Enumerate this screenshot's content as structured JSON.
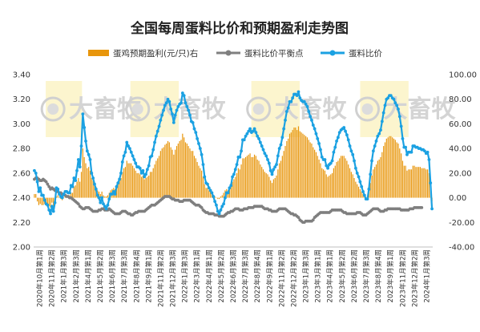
{
  "chart_data": {
    "type": "bar+line",
    "title": "全国每周蛋料比价和预期盈利走势图",
    "watermark": "大畜牧",
    "legend": [
      {
        "name": "蛋鸡预期盈利(元/只)右",
        "kind": "bar",
        "color": "#E8960C"
      },
      {
        "name": "蛋料比价平衡点",
        "kind": "line",
        "color": "#7F7F7F"
      },
      {
        "name": "蛋料比价",
        "kind": "line",
        "color": "#1BA1E2"
      }
    ],
    "y_left": {
      "min": 2.0,
      "max": 3.4,
      "step": 0.2,
      "ticks": [
        "2.00",
        "2.20",
        "2.40",
        "2.60",
        "2.80",
        "3.00",
        "3.20",
        "3.40"
      ]
    },
    "y_right": {
      "min": -40,
      "max": 100,
      "step": 20,
      "ticks": [
        "-40.00",
        "-20.00",
        "0.00",
        "20.00",
        "40.00",
        "60.00",
        "80.00",
        "100.00"
      ]
    },
    "x_labels": [
      "2020年10月第1周",
      "2020年11月第2周",
      "2021年1月第3周",
      "2021年2月第3周",
      "2021年4月第1周",
      "2021年5月第2周",
      "2021年6月第3周",
      "2021年7月第3周",
      "2021年8月第4周",
      "2021年9月第1周",
      "2021年11月第2周",
      "2021年12月第3周",
      "2022年1月第3周",
      "2022年3月第1周",
      "2022年4月第1周",
      "2022年5月第2周",
      "2022年6月第3周",
      "2022年7月第3周",
      "2022年8月第4周",
      "2022年9月第1周",
      "2022年11月第2周",
      "2022年12月第2周",
      "2023年1月第3周",
      "2023年3月第1周",
      "2023年4月第1周",
      "2023年5月第2周",
      "2023年6月第2周",
      "2023年7月第3周",
      "2023年8月第4周",
      "2023年9月第1周",
      "2023年11月第2周",
      "2023年12月第2周",
      "2024年1月第3周"
    ],
    "points_per_label": 6,
    "highlight_ranges": [
      [
        1,
        4
      ],
      [
        8,
        12
      ],
      [
        18,
        22
      ],
      [
        27,
        31
      ]
    ],
    "ratio": [
      2.62,
      2.6,
      2.53,
      2.45,
      2.48,
      2.42,
      2.42,
      2.38,
      2.35,
      2.34,
      2.3,
      2.27,
      2.33,
      2.29,
      2.36,
      2.48,
      2.47,
      2.43,
      2.41,
      2.4,
      2.43,
      2.45,
      2.45,
      2.44,
      2.44,
      2.5,
      2.49,
      2.56,
      2.54,
      2.62,
      2.71,
      2.65,
      2.82,
      3.08,
      2.97,
      2.86,
      2.78,
      2.75,
      2.71,
      2.6,
      2.56,
      2.51,
      2.47,
      2.42,
      2.4,
      2.36,
      2.4,
      2.35,
      2.33,
      2.31,
      2.34,
      2.39,
      2.43,
      2.43,
      2.45,
      2.43,
      2.49,
      2.52,
      2.55,
      2.6,
      2.69,
      2.74,
      2.77,
      2.85,
      2.82,
      2.8,
      2.77,
      2.74,
      2.71,
      2.68,
      2.65,
      2.65,
      2.64,
      2.6,
      2.62,
      2.57,
      2.59,
      2.63,
      2.66,
      2.73,
      2.74,
      2.79,
      2.85,
      2.9,
      2.94,
      2.98,
      3.03,
      3.07,
      3.11,
      3.15,
      3.17,
      3.2,
      3.18,
      3.12,
      3.08,
      3.01,
      3.07,
      3.11,
      3.14,
      3.16,
      3.17,
      3.25,
      3.23,
      3.17,
      3.14,
      3.11,
      3.07,
      3.02,
      3.01,
      2.96,
      2.93,
      2.88,
      2.84,
      2.8,
      2.75,
      2.67,
      2.57,
      2.52,
      2.51,
      2.48,
      2.46,
      2.44,
      2.41,
      2.37,
      2.34,
      2.29,
      2.27,
      2.3,
      2.33,
      2.35,
      2.4,
      2.44,
      2.44,
      2.48,
      2.5,
      2.57,
      2.59,
      2.63,
      2.67,
      2.73,
      2.73,
      2.78,
      2.87,
      2.87,
      2.9,
      2.92,
      2.94,
      2.96,
      2.93,
      2.94,
      2.96,
      2.93,
      2.9,
      2.88,
      2.85,
      2.82,
      2.79,
      2.76,
      2.74,
      2.71,
      2.68,
      2.62,
      2.59,
      2.63,
      2.65,
      2.67,
      2.74,
      2.8,
      2.83,
      2.89,
      2.96,
      3.03,
      3.1,
      3.13,
      3.18,
      3.18,
      3.21,
      3.24,
      3.24,
      3.23,
      3.26,
      3.21,
      3.19,
      3.18,
      3.18,
      3.16,
      3.14,
      3.1,
      3.06,
      3.03,
      2.99,
      2.96,
      2.92,
      2.88,
      2.84,
      2.79,
      2.73,
      2.71,
      2.71,
      2.66,
      2.64,
      2.67,
      2.68,
      2.7,
      2.77,
      2.81,
      2.86,
      2.89,
      2.93,
      2.95,
      2.96,
      2.97,
      2.94,
      2.91,
      2.87,
      2.82,
      2.78,
      2.75,
      2.7,
      2.64,
      2.6,
      2.57,
      2.53,
      2.49,
      2.45,
      2.42,
      2.39,
      2.39,
      2.47,
      2.59,
      2.7,
      2.78,
      2.82,
      2.86,
      2.9,
      2.92,
      2.95,
      3.02,
      3.09,
      3.15,
      3.2,
      3.21,
      3.23,
      3.23,
      3.21,
      3.2,
      3.17,
      3.15,
      3.12,
      3.06,
      2.98,
      2.88,
      2.81,
      2.81,
      2.75,
      2.77,
      2.77,
      2.77,
      2.82,
      2.82,
      2.81,
      2.81,
      2.8,
      2.8,
      2.79,
      2.79,
      2.78,
      2.76,
      2.77,
      2.71,
      2.52,
      2.31
    ],
    "breakeven": [
      2.55,
      2.56,
      2.56,
      2.55,
      2.54,
      2.54,
      2.55,
      2.54,
      2.53,
      2.51,
      2.49,
      2.47,
      2.48,
      2.47,
      2.46,
      2.45,
      2.45,
      2.44,
      2.44,
      2.43,
      2.43,
      2.42,
      2.41,
      2.41,
      2.4,
      2.4,
      2.39,
      2.38,
      2.37,
      2.36,
      2.35,
      2.33,
      2.32,
      2.31,
      2.31,
      2.32,
      2.32,
      2.32,
      2.31,
      2.3,
      2.29,
      2.29,
      2.29,
      2.29,
      2.3,
      2.3,
      2.31,
      2.31,
      2.3,
      2.3,
      2.3,
      2.31,
      2.3,
      2.29,
      2.28,
      2.27,
      2.27,
      2.27,
      2.27,
      2.28,
      2.29,
      2.29,
      2.29,
      2.28,
      2.27,
      2.27,
      2.26,
      2.26,
      2.27,
      2.28,
      2.28,
      2.29,
      2.29,
      2.29,
      2.29,
      2.29,
      2.3,
      2.31,
      2.32,
      2.33,
      2.34,
      2.34,
      2.34,
      2.35,
      2.36,
      2.37,
      2.38,
      2.39,
      2.4,
      2.41,
      2.41,
      2.41,
      2.41,
      2.4,
      2.39,
      2.39,
      2.38,
      2.38,
      2.38,
      2.37,
      2.37,
      2.37,
      2.38,
      2.38,
      2.38,
      2.38,
      2.38,
      2.37,
      2.36,
      2.35,
      2.34,
      2.34,
      2.34,
      2.33,
      2.32,
      2.3,
      2.29,
      2.28,
      2.28,
      2.27,
      2.27,
      2.27,
      2.27,
      2.26,
      2.26,
      2.26,
      2.25,
      2.25,
      2.25,
      2.25,
      2.26,
      2.27,
      2.28,
      2.28,
      2.29,
      2.29,
      2.3,
      2.31,
      2.31,
      2.31,
      2.3,
      2.3,
      2.3,
      2.31,
      2.31,
      2.31,
      2.32,
      2.32,
      2.32,
      2.32,
      2.33,
      2.33,
      2.33,
      2.33,
      2.33,
      2.33,
      2.32,
      2.31,
      2.31,
      2.31,
      2.3,
      2.3,
      2.29,
      2.29,
      2.29,
      2.29,
      2.3,
      2.31,
      2.31,
      2.31,
      2.31,
      2.31,
      2.3,
      2.29,
      2.28,
      2.27,
      2.27,
      2.26,
      2.26,
      2.25,
      2.24,
      2.22,
      2.21,
      2.2,
      2.2,
      2.21,
      2.21,
      2.21,
      2.21,
      2.21,
      2.22,
      2.24,
      2.25,
      2.26,
      2.27,
      2.28,
      2.28,
      2.28,
      2.28,
      2.28,
      2.28,
      2.28,
      2.29,
      2.3,
      2.3,
      2.3,
      2.3,
      2.3,
      2.3,
      2.3,
      2.29,
      2.28,
      2.28,
      2.27,
      2.27,
      2.27,
      2.27,
      2.27,
      2.27,
      2.27,
      2.28,
      2.28,
      2.28,
      2.27,
      2.26,
      2.26,
      2.26,
      2.27,
      2.28,
      2.29,
      2.3,
      2.31,
      2.31,
      2.31,
      2.31,
      2.3,
      2.29,
      2.29,
      2.29,
      2.3,
      2.3,
      2.31,
      2.31,
      2.31,
      2.31,
      2.31,
      2.31,
      2.31,
      2.31,
      2.31,
      2.3,
      2.3,
      2.3,
      2.3,
      2.3,
      2.3,
      2.31,
      2.31,
      2.31,
      2.32,
      2.32,
      2.32,
      2.32,
      2.32,
      2.32
    ],
    "profit": [
      3,
      3,
      -3,
      -6,
      -5,
      -6,
      -6,
      -5,
      -6,
      -7,
      -7,
      -8,
      -4,
      -8,
      -4,
      1,
      2,
      0,
      -1,
      -2,
      0,
      1,
      1,
      2,
      2,
      4,
      4,
      9,
      10,
      13,
      16,
      13,
      21,
      40,
      33,
      28,
      24,
      25,
      22,
      16,
      14,
      11,
      9,
      6,
      5,
      3,
      5,
      2,
      1,
      1,
      2,
      4,
      6,
      7,
      8,
      7,
      10,
      12,
      14,
      16,
      21,
      24,
      25,
      30,
      28,
      28,
      28,
      26,
      24,
      22,
      20,
      20,
      19,
      17,
      18,
      15,
      16,
      17,
      18,
      21,
      21,
      24,
      27,
      30,
      32,
      34,
      38,
      40,
      41,
      43,
      44,
      46,
      45,
      41,
      39,
      35,
      39,
      42,
      44,
      46,
      47,
      52,
      49,
      45,
      44,
      42,
      40,
      38,
      38,
      34,
      32,
      29,
      26,
      24,
      22,
      17,
      11,
      8,
      8,
      6,
      5,
      4,
      2,
      1,
      0,
      -1,
      -1,
      1,
      2,
      4,
      6,
      7,
      6,
      9,
      9,
      13,
      15,
      17,
      20,
      24,
      23,
      27,
      32,
      32,
      33,
      34,
      35,
      36,
      33,
      33,
      35,
      34,
      31,
      30,
      27,
      25,
      23,
      21,
      20,
      19,
      17,
      14,
      12,
      15,
      16,
      18,
      23,
      28,
      30,
      34,
      38,
      42,
      46,
      48,
      52,
      53,
      55,
      57,
      57,
      55,
      58,
      54,
      53,
      52,
      51,
      50,
      49,
      47,
      45,
      44,
      41,
      39,
      37,
      34,
      31,
      28,
      24,
      23,
      22,
      19,
      17,
      18,
      19,
      20,
      24,
      26,
      29,
      30,
      32,
      34,
      34,
      34,
      32,
      30,
      27,
      24,
      21,
      19,
      16,
      13,
      11,
      9,
      7,
      5,
      3,
      1,
      0,
      1,
      5,
      12,
      18,
      23,
      25,
      27,
      30,
      31,
      33,
      37,
      42,
      45,
      48,
      49,
      50,
      50,
      49,
      48,
      47,
      45,
      44,
      40,
      36,
      30,
      26,
      26,
      22,
      23,
      23,
      23,
      26,
      26,
      25,
      25,
      25,
      25,
      24,
      24,
      24,
      23,
      23,
      20,
      9,
      -3
    ]
  }
}
